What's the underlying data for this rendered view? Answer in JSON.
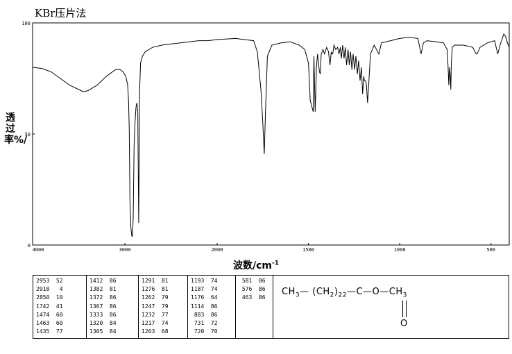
{
  "title": "KBr压片法",
  "ylabel": "透过率%/",
  "xlabel": "波数/cm",
  "xlabel_sup": "-1",
  "chart_data": {
    "type": "line",
    "title": "KBr压片法",
    "xlabel": "波数/cm-1",
    "ylabel": "透过率%/",
    "xlim": [
      4000,
      400
    ],
    "ylim": [
      0,
      100
    ],
    "x_ticks": [
      4000,
      3000,
      2000,
      1500,
      1000,
      500
    ],
    "x_tick_labels": [
      "4000",
      "3000",
      "2000",
      "1500",
      "1000",
      "500"
    ],
    "y_ticks": [
      0,
      50,
      100
    ],
    "y_tick_labels": [
      "0",
      "50",
      "100"
    ],
    "grid": false,
    "series": [
      {
        "x": [
          4000,
          3900,
          3800,
          3700,
          3600,
          3500,
          3450,
          3400,
          3300,
          3200,
          3100,
          3050,
          3020,
          2990,
          2970,
          2960,
          2953,
          2945,
          2935,
          2925,
          2918,
          2910,
          2900,
          2890,
          2880,
          2870,
          2860,
          2850,
          2840,
          2830,
          2810,
          2780,
          2700,
          2600,
          2500,
          2400,
          2300,
          2200,
          2100,
          2000,
          1900,
          1800,
          1780,
          1760,
          1750,
          1742,
          1735,
          1725,
          1700,
          1650,
          1600,
          1550,
          1520,
          1500,
          1490,
          1480,
          1474,
          1470,
          1463,
          1456,
          1450,
          1440,
          1435,
          1430,
          1420,
          1412,
          1400,
          1390,
          1382,
          1375,
          1372,
          1367,
          1360,
          1350,
          1340,
          1333,
          1325,
          1320,
          1312,
          1305,
          1298,
          1291,
          1283,
          1276,
          1269,
          1262,
          1255,
          1247,
          1240,
          1232,
          1225,
          1217,
          1210,
          1203,
          1197,
          1193,
          1187,
          1182,
          1176,
          1170,
          1160,
          1140,
          1114,
          1100,
          1050,
          1000,
          950,
          900,
          883,
          870,
          850,
          800,
          760,
          740,
          735,
          731,
          727,
          723,
          720,
          717,
          712,
          700,
          650,
          600,
          581,
          576,
          560,
          520,
          480,
          463,
          450,
          430,
          420,
          410,
          400
        ],
        "y": [
          80,
          79.5,
          78,
          75,
          72,
          70,
          69,
          69.5,
          72,
          76,
          79,
          79,
          78,
          76,
          72,
          65,
          52,
          20,
          8,
          4,
          4,
          12,
          45,
          55,
          62,
          64,
          60,
          10,
          70,
          82,
          85,
          87,
          89,
          90,
          90.5,
          91,
          91.5,
          92,
          92,
          92.5,
          93,
          92,
          87,
          70,
          55,
          41,
          60,
          85,
          90,
          91,
          91.5,
          90,
          88,
          82,
          65,
          62,
          60,
          85,
          60,
          80,
          86,
          78,
          77,
          86,
          88,
          86,
          89,
          87,
          81,
          87,
          86,
          86,
          90,
          88,
          89,
          86,
          89,
          84,
          90,
          84,
          89,
          81,
          88,
          81,
          87,
          79,
          86,
          79,
          85,
          77,
          83,
          74,
          80,
          68,
          76,
          74,
          74,
          72,
          64,
          72,
          86,
          90,
          86,
          91,
          92,
          93,
          93.5,
          93,
          86,
          91,
          92,
          91.5,
          91,
          88,
          80,
          72,
          80,
          76,
          70,
          82,
          89,
          90,
          90,
          89,
          86,
          86,
          89,
          91,
          92,
          86,
          90,
          95,
          94,
          91,
          89
        ]
      }
    ],
    "peak_table": [
      [
        [
          "2953",
          "52"
        ],
        [
          "2918",
          "4"
        ],
        [
          "2850",
          "10"
        ],
        [
          "1742",
          "41"
        ],
        [
          "1474",
          "60"
        ],
        [
          "1463",
          "60"
        ],
        [
          "1435",
          "77"
        ]
      ],
      [
        [
          "1412",
          "86"
        ],
        [
          "1382",
          "81"
        ],
        [
          "1372",
          "86"
        ],
        [
          "1367",
          "86"
        ],
        [
          "1333",
          "86"
        ],
        [
          "1320",
          "84"
        ],
        [
          "1305",
          "84"
        ]
      ],
      [
        [
          "1291",
          "81"
        ],
        [
          "1276",
          "81"
        ],
        [
          "1262",
          "79"
        ],
        [
          "1247",
          "79"
        ],
        [
          "1232",
          "77"
        ],
        [
          "1217",
          "74"
        ],
        [
          "1203",
          "68"
        ]
      ],
      [
        [
          "1193",
          "74"
        ],
        [
          "1187",
          "74"
        ],
        [
          "1176",
          "64"
        ],
        [
          "1114",
          "86"
        ],
        [
          "883",
          "86"
        ],
        [
          "731",
          "72"
        ],
        [
          "720",
          "70"
        ]
      ],
      [
        [
          "581",
          "86"
        ],
        [
          "576",
          "86"
        ],
        [
          "463",
          "86"
        ]
      ]
    ]
  },
  "structure": {
    "ch3_left": "CH",
    "ch3_left_sub": "3",
    "dash1": "—",
    "paren_open": "(",
    "ch2": "CH",
    "ch2_sub": "2",
    "paren_close": ")",
    "n": "22",
    "dash2": "—",
    "c": "C",
    "dash3": "—",
    "o": "O",
    "dash4": "—",
    "ch3_right": "CH",
    "ch3_right_sub": "3",
    "carbonyl_o": "O"
  }
}
